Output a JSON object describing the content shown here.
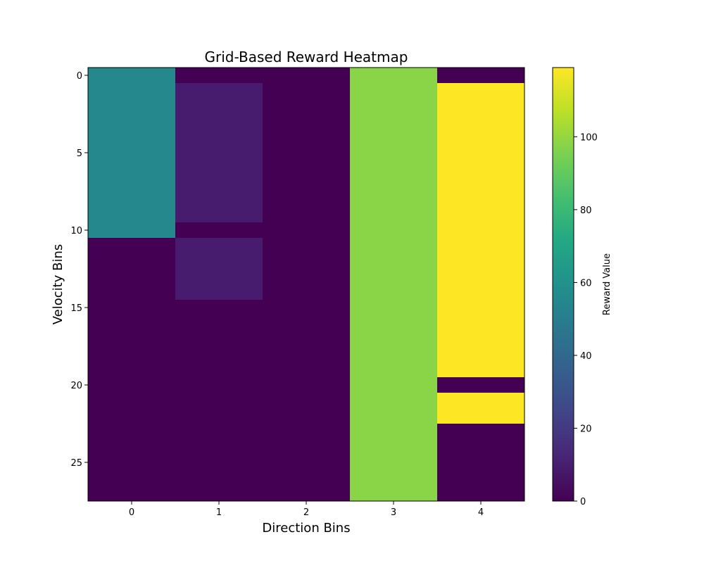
{
  "chart_data": {
    "type": "heatmap",
    "title": "Grid-Based Reward Heatmap",
    "xlabel": "Direction Bins",
    "ylabel": "Velocity Bins",
    "colorbar_label": "Reward Value",
    "colormap": "viridis",
    "value_range": [
      0,
      119
    ],
    "x_ticks": [
      0,
      1,
      2,
      3,
      4
    ],
    "y_ticks": [
      0,
      5,
      10,
      15,
      20,
      25
    ],
    "colorbar_ticks": [
      0,
      20,
      40,
      60,
      80,
      100
    ],
    "rows": 28,
    "columns": 5,
    "column_runs": [
      [
        {
          "from": 0,
          "to": 10,
          "value": 55
        },
        {
          "from": 11,
          "to": 27,
          "value": 0
        }
      ],
      [
        {
          "from": 0,
          "to": 0,
          "value": 0
        },
        {
          "from": 1,
          "to": 9,
          "value": 9
        },
        {
          "from": 10,
          "to": 10,
          "value": 0
        },
        {
          "from": 11,
          "to": 14,
          "value": 9
        },
        {
          "from": 15,
          "to": 27,
          "value": 0
        }
      ],
      [
        {
          "from": 0,
          "to": 27,
          "value": 0
        }
      ],
      [
        {
          "from": 0,
          "to": 27,
          "value": 98
        }
      ],
      [
        {
          "from": 0,
          "to": 0,
          "value": 0
        },
        {
          "from": 1,
          "to": 19,
          "value": 119
        },
        {
          "from": 20,
          "to": 20,
          "value": 0
        },
        {
          "from": 21,
          "to": 22,
          "value": 119
        },
        {
          "from": 23,
          "to": 27,
          "value": 0
        }
      ]
    ]
  }
}
